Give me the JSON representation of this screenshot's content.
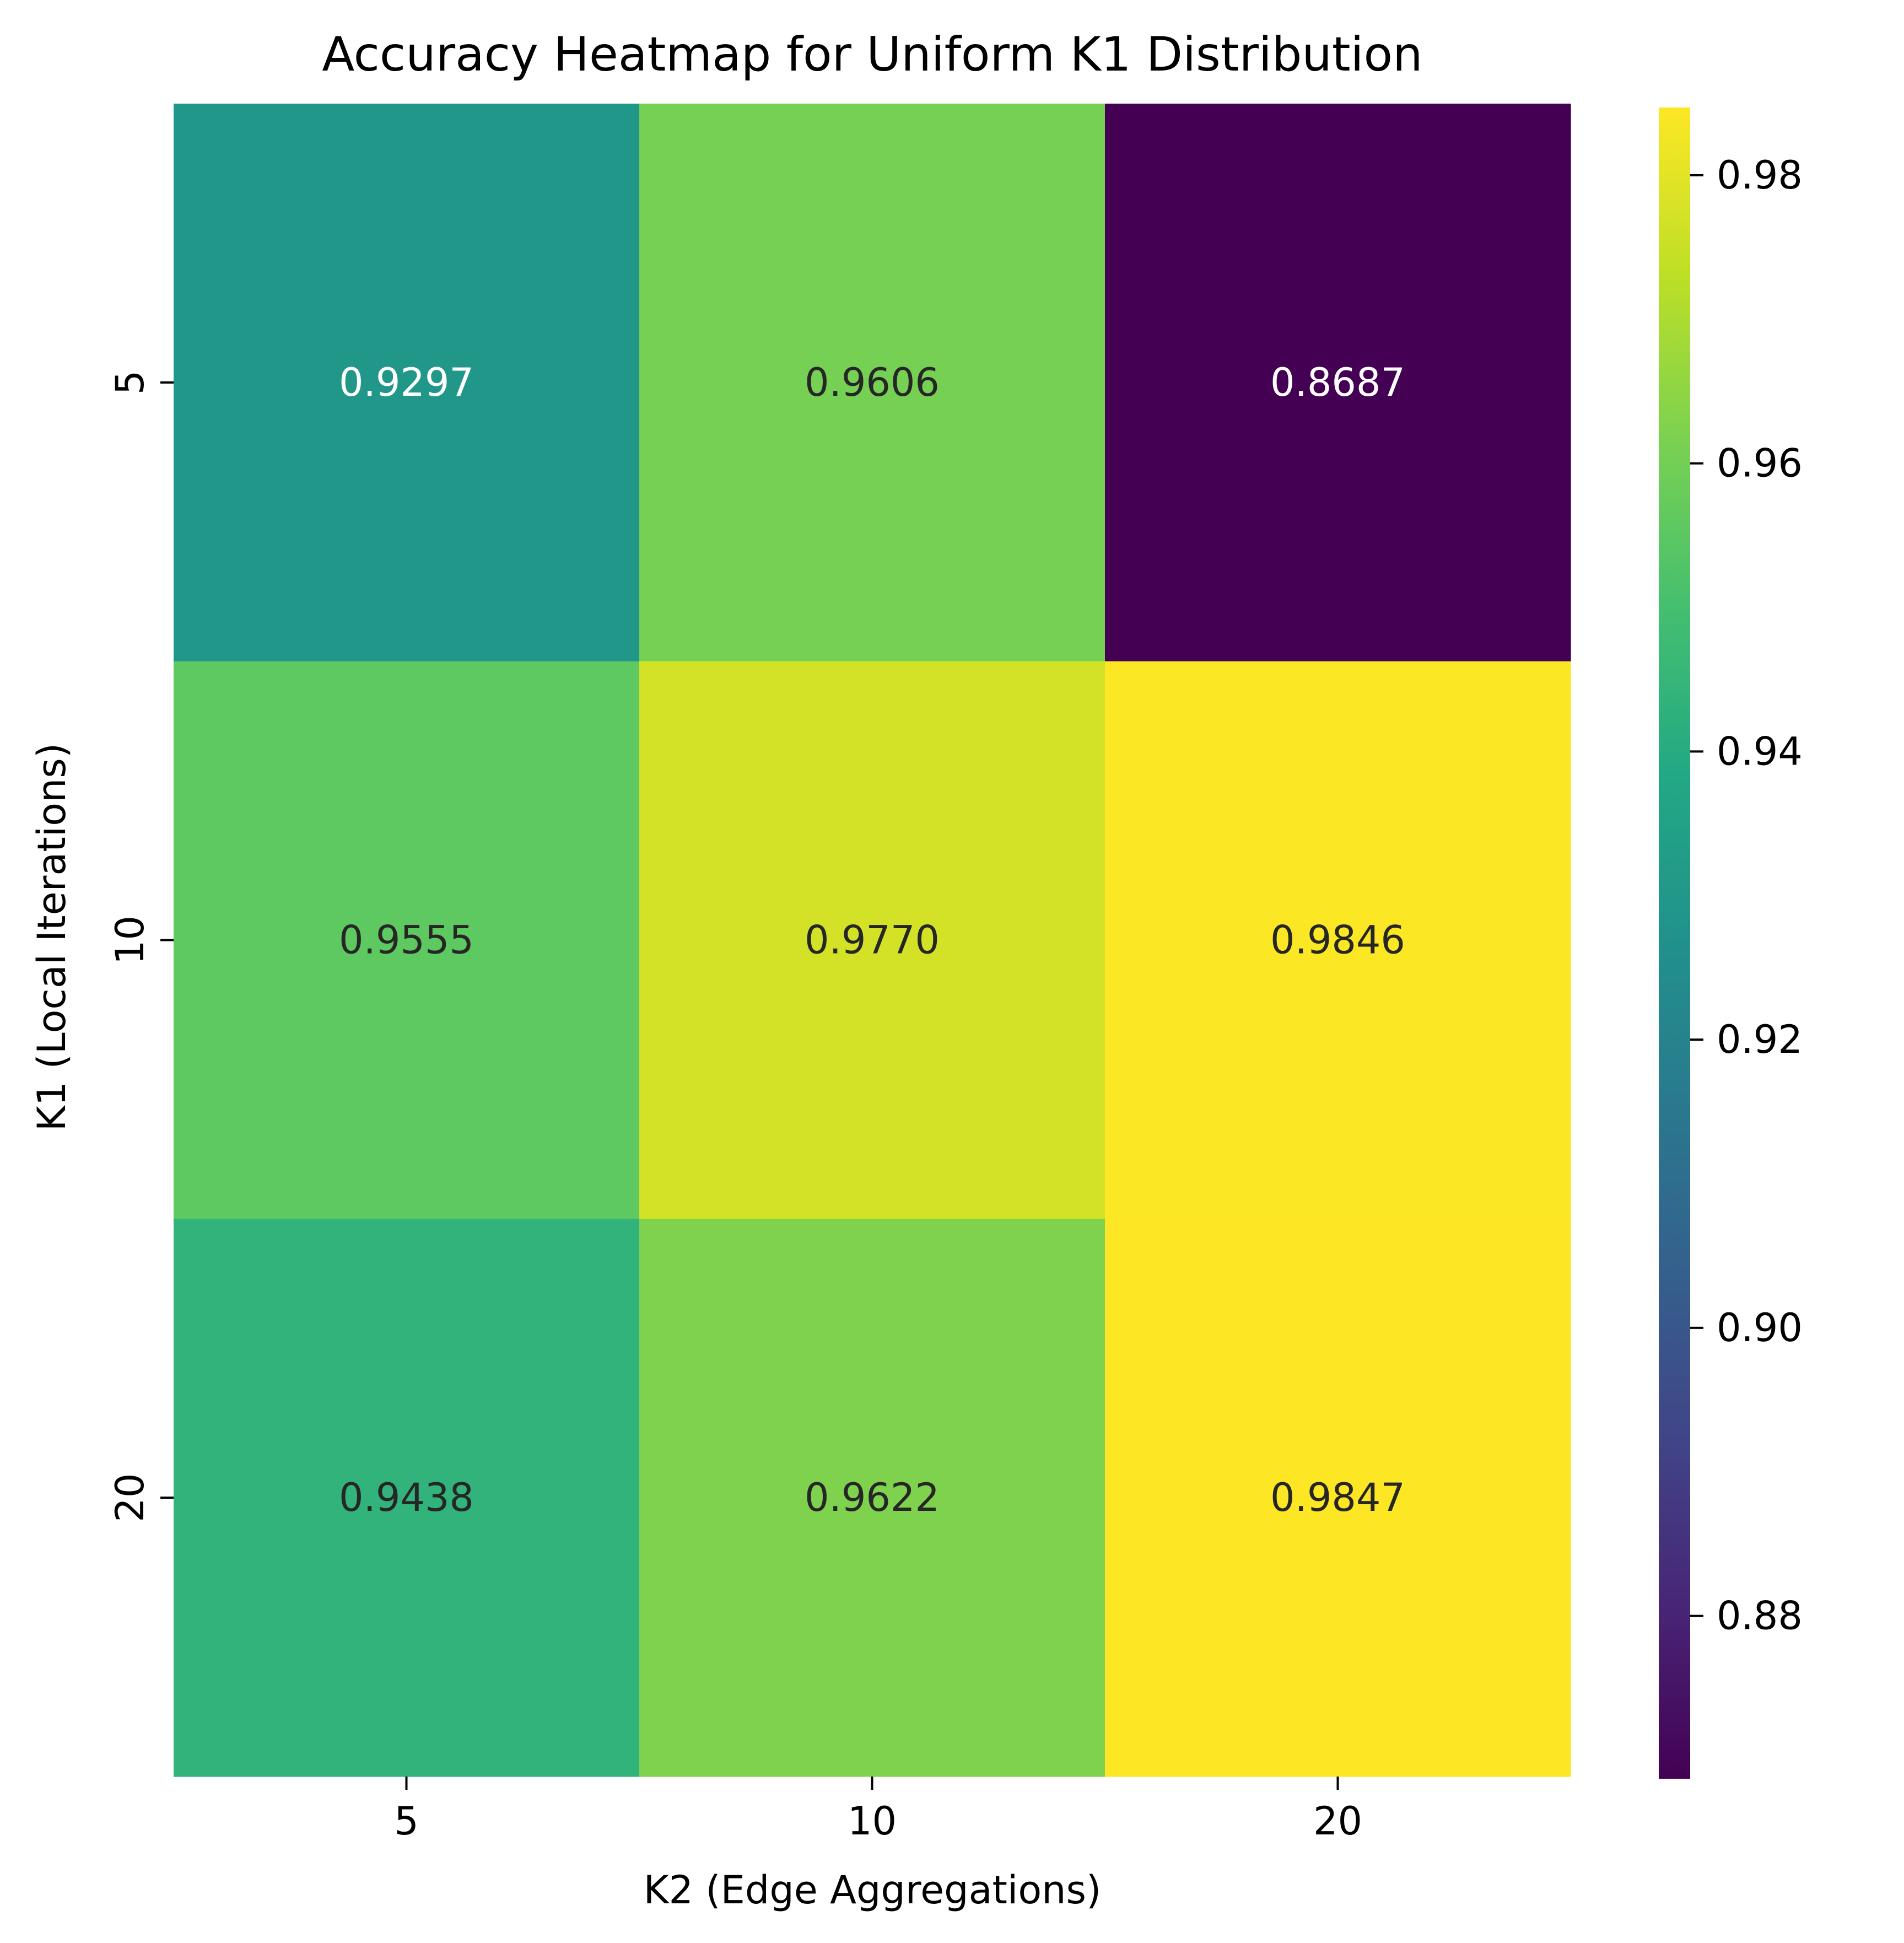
{
  "chart_data": {
    "type": "heatmap",
    "title": "Accuracy Heatmap for Uniform K1 Distribution",
    "xlabel": "K2 (Edge Aggregations)",
    "ylabel": "K1 (Local Iterations)",
    "x_categories": [
      "5",
      "10",
      "20"
    ],
    "y_categories": [
      "5",
      "10",
      "20"
    ],
    "values": [
      [
        0.9297,
        0.9606,
        0.8687
      ],
      [
        0.9555,
        0.977,
        0.9846
      ],
      [
        0.9438,
        0.9622,
        0.9847
      ]
    ],
    "value_format": "0.0000",
    "colormap": "viridis",
    "colorbar": {
      "vmin": 0.8687,
      "vmax": 0.9847,
      "ticks": [
        0.88,
        0.9,
        0.92,
        0.94,
        0.96,
        0.98
      ],
      "tick_labels": [
        "0.88",
        "0.90",
        "0.92",
        "0.94",
        "0.96",
        "0.98"
      ]
    },
    "annotation_colors": {
      "dark": "#262626",
      "light": "#ffffff"
    },
    "grid": false
  }
}
